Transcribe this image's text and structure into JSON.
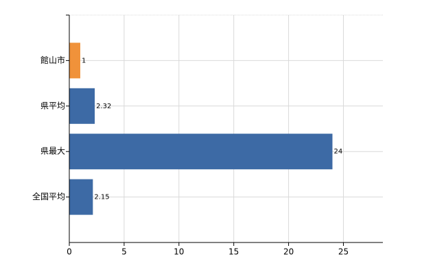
{
  "chart_data": {
    "type": "hbar",
    "categories": [
      "館山市",
      "県平均",
      "県最大",
      "全国平均"
    ],
    "values": [
      1,
      2.32,
      24,
      2.15
    ],
    "colors": [
      "#f0923a",
      "#3d6aa5",
      "#3d6aa5",
      "#3d6aa5"
    ],
    "xlim": [
      0,
      28.6
    ],
    "xticks": [
      0,
      5,
      10,
      15,
      20,
      25
    ],
    "grid": true
  }
}
